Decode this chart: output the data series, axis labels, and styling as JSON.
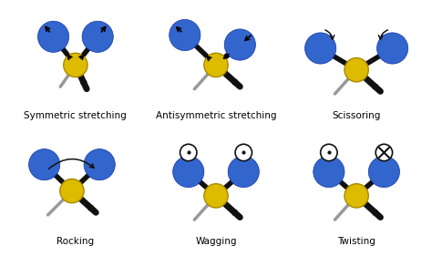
{
  "panels": [
    {
      "title": "Symmetric stretching"
    },
    {
      "title": "Antisymmetric stretching"
    },
    {
      "title": "Scissoring"
    },
    {
      "title": "Rocking"
    },
    {
      "title": "Wagging"
    },
    {
      "title": "Twisting"
    }
  ],
  "bg_color": "#ebebeb",
  "blue_color": "#3366cc",
  "yellow_color": "#ddbb00",
  "gray_color": "#999999",
  "black_color": "#111111",
  "title_fontsize": 7.5,
  "figsize": [
    4.74,
    2.81
  ],
  "dpi": 100
}
